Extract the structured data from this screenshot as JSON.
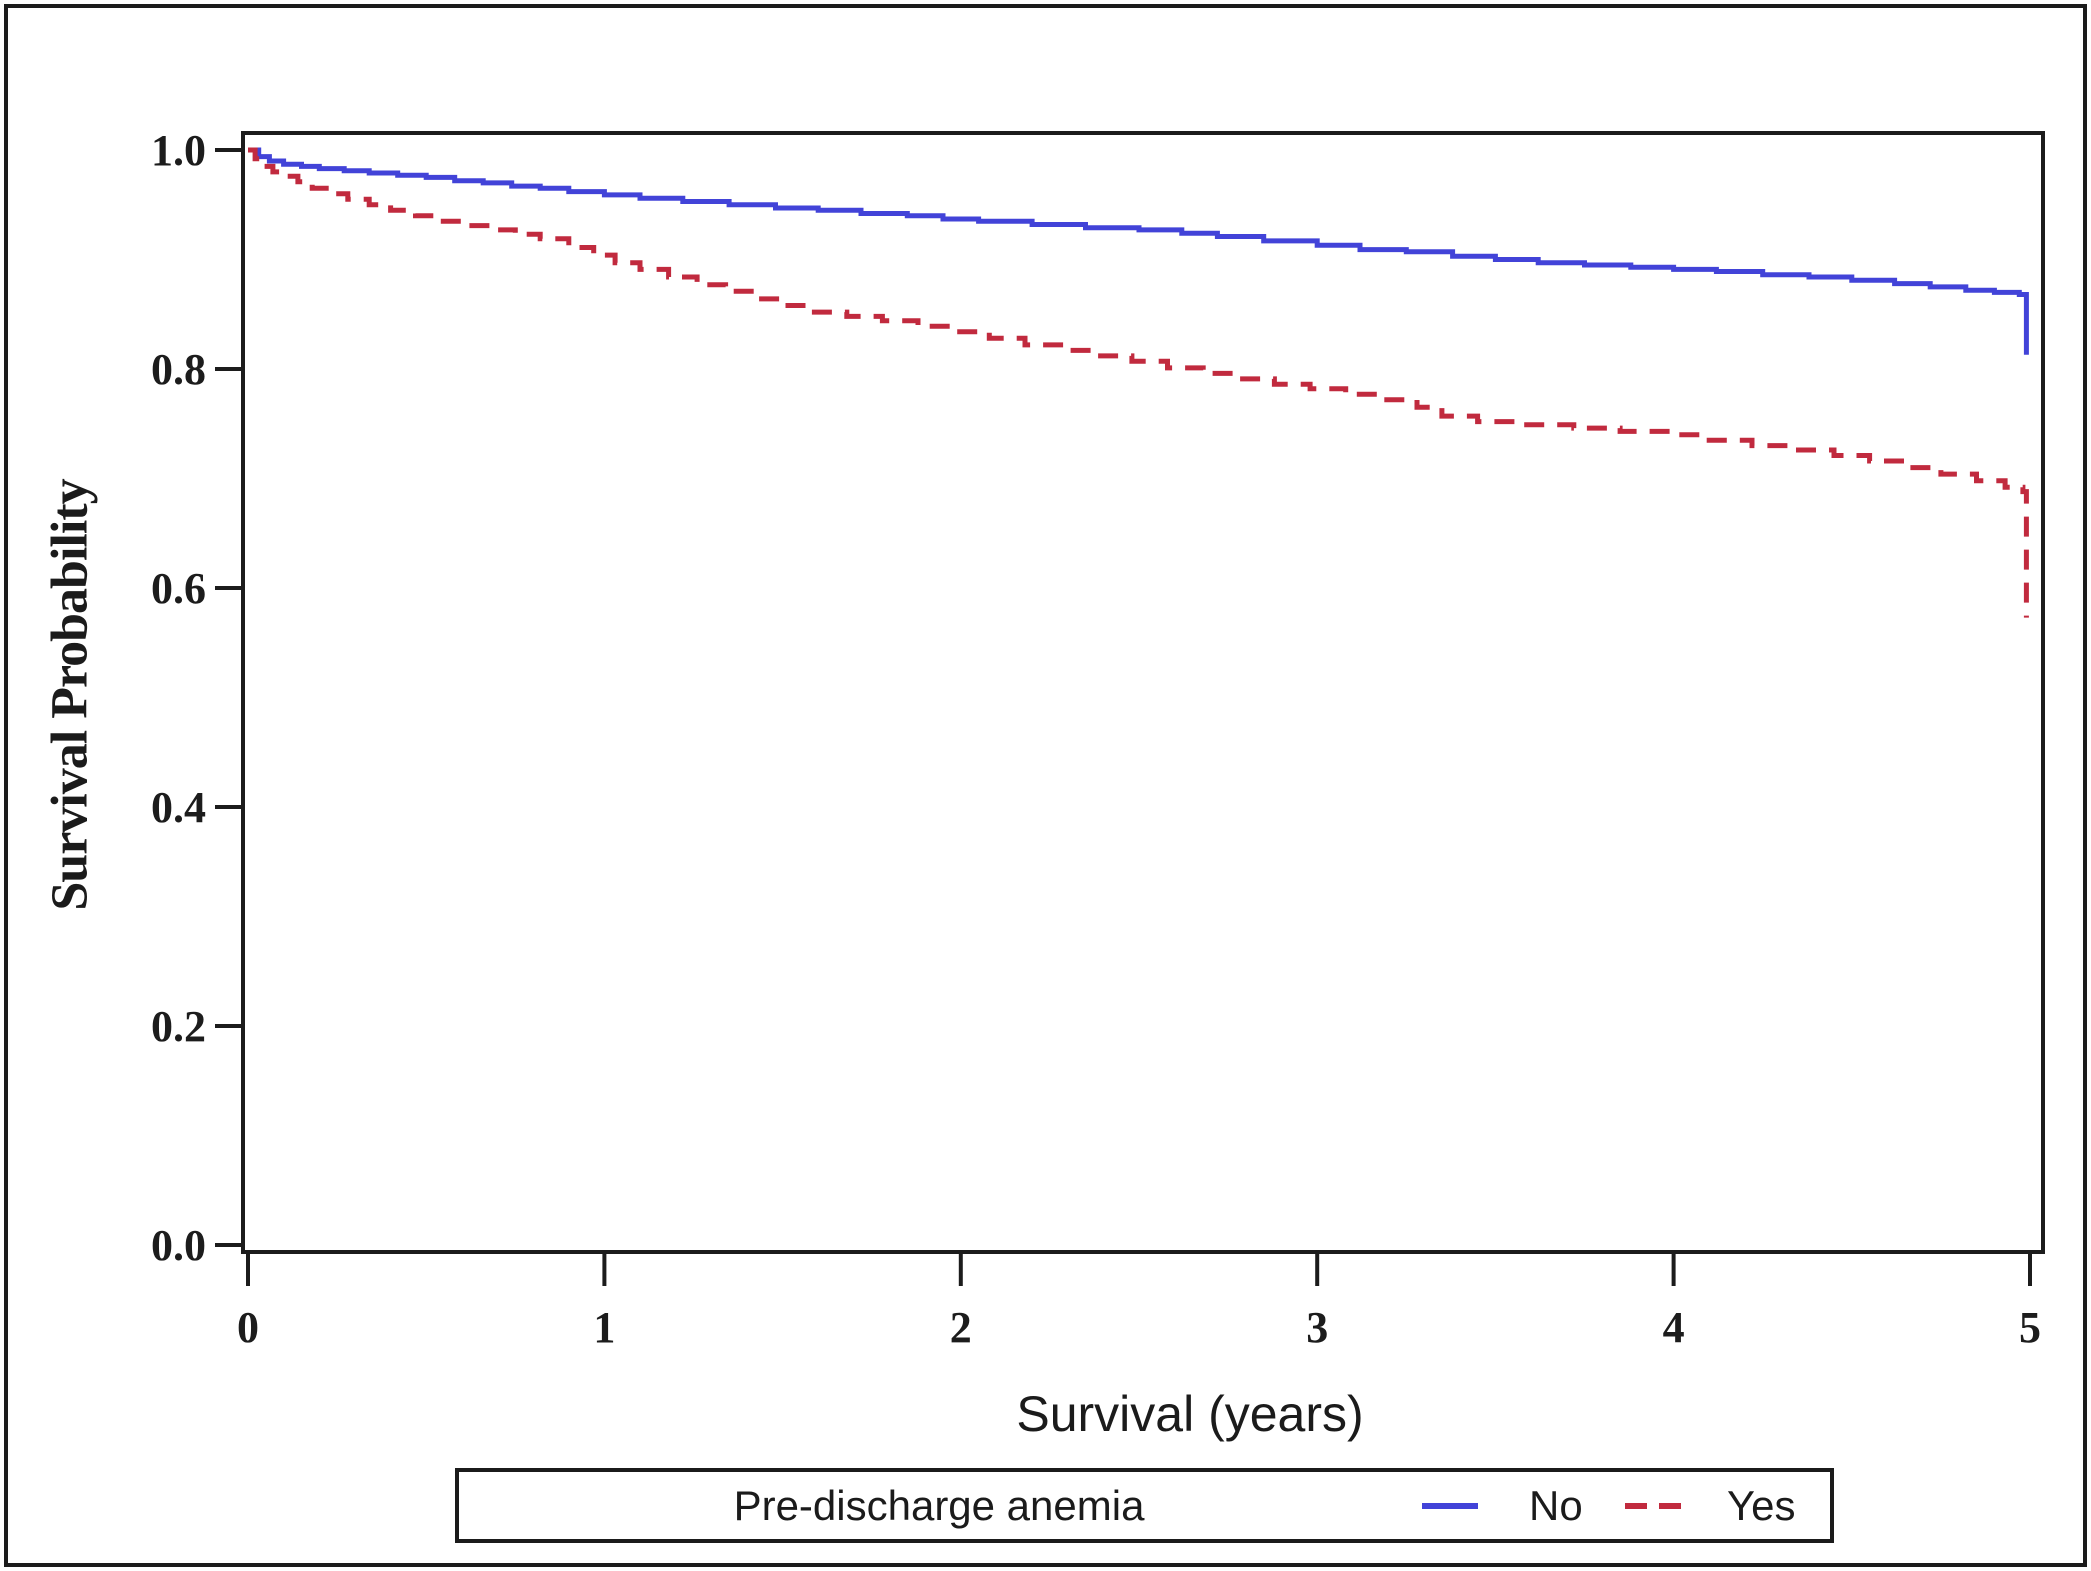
{
  "figure": {
    "x_title": "Survival (years)",
    "y_title": "Survival Probability"
  },
  "legend": {
    "title": "Pre-discharge anemia",
    "items": [
      {
        "label": "No",
        "color": "#4243d8",
        "style": "solid"
      },
      {
        "label": "Yes",
        "color": "#c12a3e",
        "style": "dashed"
      }
    ]
  },
  "colors": {
    "axis": "#1c1c1c",
    "background": "#ffffff",
    "no_line": "#4243d8",
    "yes_line": "#c12a3e"
  },
  "chart_data": {
    "type": "line",
    "subtype": "kaplan-meier-step",
    "title": "",
    "xlabel": "Survival (years)",
    "ylabel": "Survival Probability",
    "xlim": [
      0,
      5
    ],
    "ylim": [
      0.0,
      1.0
    ],
    "xticks": [
      {
        "value": 0,
        "label": "0"
      },
      {
        "value": 1,
        "label": "1"
      },
      {
        "value": 2,
        "label": "2"
      },
      {
        "value": 3,
        "label": "3"
      },
      {
        "value": 4,
        "label": "4"
      },
      {
        "value": 5,
        "label": "5"
      }
    ],
    "yticks": [
      {
        "value": 0.0,
        "label": "0.0"
      },
      {
        "value": 0.2,
        "label": "0.2"
      },
      {
        "value": 0.4,
        "label": "0.4"
      },
      {
        "value": 0.6,
        "label": "0.6"
      },
      {
        "value": 0.8,
        "label": "0.8"
      },
      {
        "value": 1.0,
        "label": "1.0"
      }
    ],
    "grid": false,
    "legend_position": "bottom",
    "series": [
      {
        "name": "No",
        "color": "#4243d8",
        "dash": "solid",
        "points": [
          [
            0,
            1.0
          ],
          [
            0.03,
            0.994
          ],
          [
            0.06,
            0.99
          ],
          [
            0.1,
            0.987
          ],
          [
            0.15,
            0.985
          ],
          [
            0.2,
            0.983
          ],
          [
            0.27,
            0.981
          ],
          [
            0.34,
            0.979
          ],
          [
            0.42,
            0.977
          ],
          [
            0.5,
            0.975
          ],
          [
            0.58,
            0.972
          ],
          [
            0.66,
            0.97
          ],
          [
            0.74,
            0.967
          ],
          [
            0.82,
            0.965
          ],
          [
            0.9,
            0.962
          ],
          [
            1.0,
            0.959
          ],
          [
            1.1,
            0.956
          ],
          [
            1.22,
            0.953
          ],
          [
            1.35,
            0.95
          ],
          [
            1.48,
            0.947
          ],
          [
            1.6,
            0.945
          ],
          [
            1.72,
            0.942
          ],
          [
            1.85,
            0.94
          ],
          [
            1.95,
            0.937
          ],
          [
            2.05,
            0.935
          ],
          [
            2.2,
            0.932
          ],
          [
            2.35,
            0.929
          ],
          [
            2.5,
            0.927
          ],
          [
            2.62,
            0.924
          ],
          [
            2.72,
            0.921
          ],
          [
            2.85,
            0.917
          ],
          [
            3.0,
            0.913
          ],
          [
            3.12,
            0.909
          ],
          [
            3.25,
            0.907
          ],
          [
            3.38,
            0.903
          ],
          [
            3.5,
            0.9
          ],
          [
            3.62,
            0.897
          ],
          [
            3.75,
            0.895
          ],
          [
            3.88,
            0.893
          ],
          [
            4.0,
            0.891
          ],
          [
            4.12,
            0.889
          ],
          [
            4.25,
            0.886
          ],
          [
            4.38,
            0.884
          ],
          [
            4.5,
            0.881
          ],
          [
            4.62,
            0.878
          ],
          [
            4.72,
            0.875
          ],
          [
            4.82,
            0.872
          ],
          [
            4.9,
            0.87
          ],
          [
            4.97,
            0.868
          ],
          [
            4.99,
            0.813
          ]
        ]
      },
      {
        "name": "Yes",
        "color": "#c12a3e",
        "dash": "dashed",
        "points": [
          [
            0,
            1.0
          ],
          [
            0.02,
            0.992
          ],
          [
            0.04,
            0.985
          ],
          [
            0.07,
            0.98
          ],
          [
            0.1,
            0.976
          ],
          [
            0.14,
            0.971
          ],
          [
            0.18,
            0.965
          ],
          [
            0.23,
            0.96
          ],
          [
            0.28,
            0.955
          ],
          [
            0.34,
            0.95
          ],
          [
            0.4,
            0.945
          ],
          [
            0.47,
            0.94
          ],
          [
            0.54,
            0.935
          ],
          [
            0.6,
            0.931
          ],
          [
            0.68,
            0.927
          ],
          [
            0.75,
            0.923
          ],
          [
            0.82,
            0.919
          ],
          [
            0.9,
            0.911
          ],
          [
            0.97,
            0.904
          ],
          [
            1.03,
            0.897
          ],
          [
            1.1,
            0.891
          ],
          [
            1.18,
            0.884
          ],
          [
            1.26,
            0.877
          ],
          [
            1.34,
            0.871
          ],
          [
            1.42,
            0.864
          ],
          [
            1.5,
            0.858
          ],
          [
            1.58,
            0.852
          ],
          [
            1.68,
            0.848
          ],
          [
            1.78,
            0.844
          ],
          [
            1.88,
            0.839
          ],
          [
            1.98,
            0.834
          ],
          [
            2.08,
            0.828
          ],
          [
            2.18,
            0.822
          ],
          [
            2.28,
            0.817
          ],
          [
            2.38,
            0.812
          ],
          [
            2.48,
            0.807
          ],
          [
            2.58,
            0.801
          ],
          [
            2.68,
            0.796
          ],
          [
            2.78,
            0.791
          ],
          [
            2.88,
            0.786
          ],
          [
            2.98,
            0.782
          ],
          [
            3.08,
            0.777
          ],
          [
            3.18,
            0.772
          ],
          [
            3.28,
            0.765
          ],
          [
            3.35,
            0.757
          ],
          [
            3.45,
            0.752
          ],
          [
            3.58,
            0.749
          ],
          [
            3.72,
            0.746
          ],
          [
            3.85,
            0.743
          ],
          [
            4.0,
            0.74
          ],
          [
            4.1,
            0.735
          ],
          [
            4.22,
            0.73
          ],
          [
            4.33,
            0.726
          ],
          [
            4.45,
            0.721
          ],
          [
            4.55,
            0.716
          ],
          [
            4.65,
            0.71
          ],
          [
            4.75,
            0.704
          ],
          [
            4.85,
            0.698
          ],
          [
            4.93,
            0.692
          ],
          [
            4.98,
            0.688
          ],
          [
            4.99,
            0.573
          ]
        ]
      }
    ]
  }
}
